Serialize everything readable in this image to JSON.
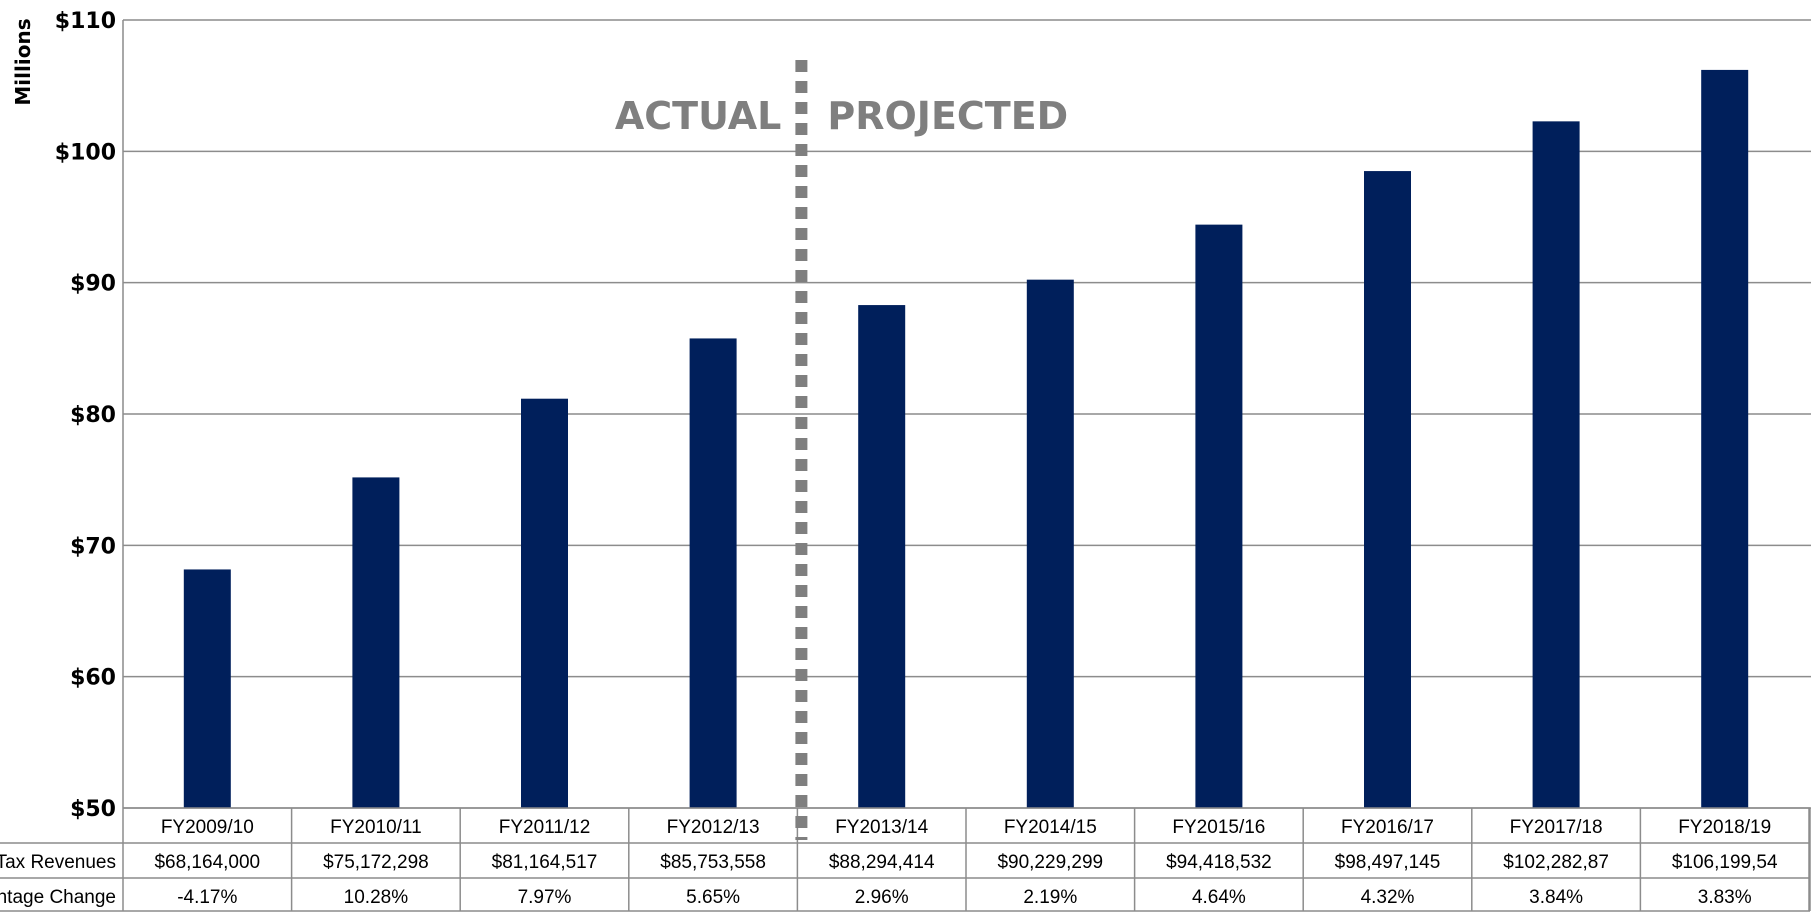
{
  "chart_data": {
    "type": "bar",
    "ylabel": "Millions",
    "ylim": [
      50,
      110
    ],
    "yticks": [
      50,
      60,
      70,
      80,
      90,
      100,
      110
    ],
    "ytick_labels": [
      "$50",
      "$60",
      "$70",
      "$80",
      "$90",
      "$100",
      "$110"
    ],
    "grid": true,
    "categories": [
      "FY2009/10",
      "FY2010/11",
      "FY2011/12",
      "FY2012/13",
      "FY2013/14",
      "FY2014/15",
      "FY2015/16",
      "FY2016/17",
      "FY2017/18",
      "FY2018/19"
    ],
    "values": [
      68.164,
      75.172,
      81.165,
      85.754,
      88.294,
      90.229,
      94.419,
      98.497,
      102.283,
      106.2
    ],
    "bar_color": "#001f5b",
    "divider_after_index": 3,
    "annotations": {
      "left": "ACTUAL",
      "right": "PROJECTED"
    },
    "table": {
      "rows": [
        {
          "label": "Tax Revenues",
          "cells": [
            "$68,164,000",
            "$75,172,298",
            "$81,164,517",
            "$85,753,558",
            "$88,294,414",
            "$90,229,299",
            "$94,418,532",
            "$98,497,145",
            "$102,282,87",
            "$106,199,54"
          ]
        },
        {
          "label": "entage Change",
          "cells": [
            "-4.17%",
            "10.28%",
            "7.97%",
            "5.65%",
            "2.96%",
            "2.19%",
            "4.64%",
            "4.32%",
            "3.84%",
            "3.83%"
          ]
        }
      ]
    }
  }
}
